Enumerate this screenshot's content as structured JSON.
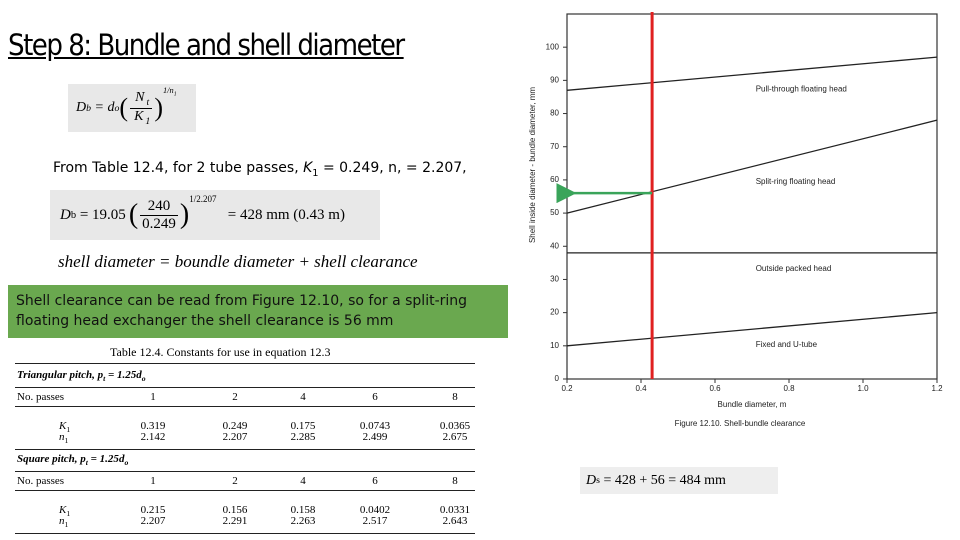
{
  "title": "Step 8: Bundle and shell diameter",
  "formula_general": {
    "D": "D",
    "D_sub": "b",
    "eq": "= d",
    "eq_sub": "o",
    "num": "N",
    "num_sub": "t",
    "den": "K",
    "den_sub": "1",
    "exp": "1/n",
    "exp_sub": "1"
  },
  "text_from_table": [
    "From Table 12.4, for 2 tube passes, ",
    "K",
    "1",
    " = 0.249, n, = 2.207,"
  ],
  "formula_bundle": {
    "D": "D",
    "D_sub": "b",
    "eq": "= 19.05",
    "num": "240",
    "den": "0.249",
    "exp": "1/2.207",
    "result": "= 428 mm (0.43 m)"
  },
  "equation": "shell diameter = boundle diameter + shell clearance",
  "note": "Shell clearance can be read from Figure 12.10, so for a split-ring floating head exchanger the shell clearance is 56 mm",
  "formula_shell": {
    "D": "D",
    "D_sub": "s",
    "eq": "= 428 + 56 = 484 mm"
  },
  "table": {
    "caption": "Table 12.4.    Constants for use in equation 12.3",
    "sections": [
      {
        "heading": [
          "Triangular pitch, ",
          "p",
          "t",
          " = 1.25",
          "d",
          "o"
        ],
        "rows": [
          [
            [
              "No. passes"
            ],
            "1",
            "2",
            "4",
            "6",
            "8"
          ],
          [
            [
              "K",
              "1"
            ],
            "0.319",
            "0.249",
            "0.175",
            "0.0743",
            "0.0365"
          ],
          [
            [
              "n",
              "1"
            ],
            "2.142",
            "2.207",
            "2.285",
            "2.499",
            "2.675"
          ]
        ]
      },
      {
        "heading": [
          "Square pitch, ",
          "p",
          "t",
          " = 1.25",
          "d",
          "o"
        ],
        "rows": [
          [
            [
              "No. passes"
            ],
            "1",
            "2",
            "4",
            "6",
            "8"
          ],
          [
            [
              "K",
              "1"
            ],
            "0.215",
            "0.156",
            "0.158",
            "0.0402",
            "0.0331"
          ],
          [
            [
              "n",
              "1"
            ],
            "2.207",
            "2.291",
            "2.263",
            "2.517",
            "2.643"
          ]
        ]
      }
    ]
  },
  "chart_data": {
    "type": "line",
    "caption": "Figure 12.10.   Shell-bundle clearance",
    "x_label": "Bundle diameter, m",
    "y_label": "Shell inside diameter - bundle diameter, mm",
    "x": [
      0.2,
      1.2
    ],
    "series": [
      {
        "name": "Pull-through floating head",
        "color": "#222222",
        "values": [
          87,
          97
        ]
      },
      {
        "name": "Split-ring floating head",
        "color": "#222222",
        "values": [
          50,
          78
        ]
      },
      {
        "name": "Outside packed head",
        "color": "#222222",
        "values": [
          38,
          38
        ]
      },
      {
        "name": "Fixed and U-tube",
        "color": "#222222",
        "values": [
          10,
          20
        ]
      }
    ],
    "xlim": [
      0.2,
      1.2
    ],
    "xticks": [
      0.2,
      0.4,
      0.6,
      0.8,
      {
        "value": 1,
        "label": "1.0"
      },
      1.2
    ],
    "ylim": [
      0,
      110
    ],
    "yticks": [
      0,
      10,
      20,
      30,
      40,
      50,
      60,
      70,
      80,
      90,
      100
    ],
    "grid": false,
    "reference_x": 0.43,
    "reference_x_color": "#e02020",
    "reference_y": 56,
    "reference_y_color": "#3aa45a"
  }
}
